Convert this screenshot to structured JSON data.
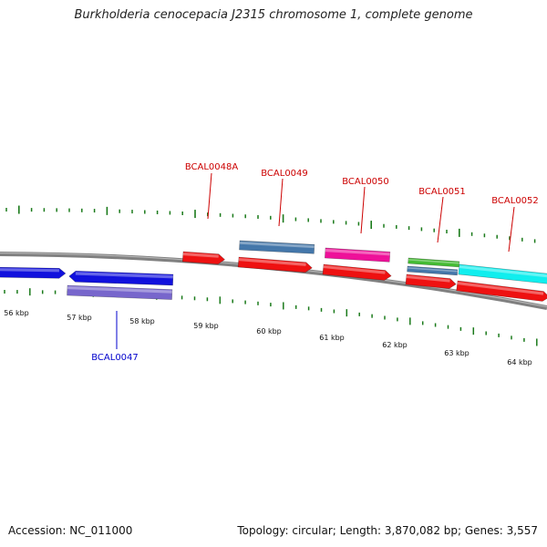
{
  "title": "Burkholderia cenocepacia J2315 chromosome 1, complete genome",
  "footer": {
    "accession": "Accession: NC_011000",
    "summary": "Topology: circular; Length: 3,870,082 bp; Genes: 3,557"
  },
  "colors": {
    "tick": "#1a7a1a",
    "backbone": "#808080",
    "label_forward": "#cc0000",
    "label_reverse": "#0000cc",
    "gene_red": "#ee1111",
    "gene_blue": "#1111dd",
    "gene_steelblue": "#4477aa",
    "gene_purple": "#7766cc",
    "gene_magenta": "#ee1199",
    "gene_green": "#44bb33",
    "gene_cyan": "#11eeee"
  },
  "kbp_labels": [
    "56 kbp",
    "57 kbp",
    "58 kbp",
    "59 kbp",
    "60 kbp",
    "61 kbp",
    "62 kbp",
    "63 kbp",
    "64 kbp"
  ],
  "gene_labels": [
    "BCAL0048A",
    "BCAL0049",
    "BCAL0050",
    "BCAL0051",
    "BCAL0052",
    "BCAL0047"
  ]
}
